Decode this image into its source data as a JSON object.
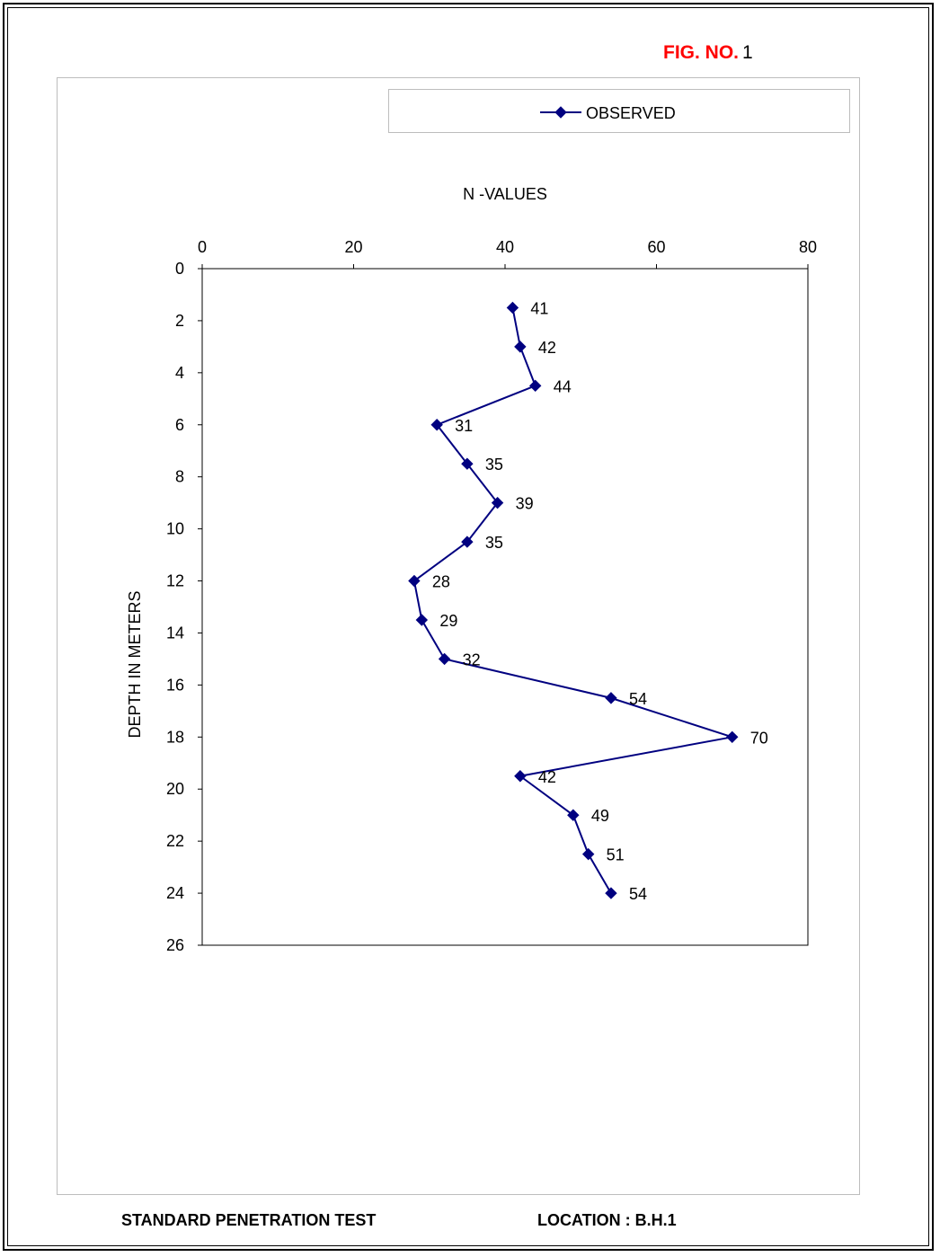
{
  "header": {
    "fig_label": "FIG. NO.",
    "fig_number": "1"
  },
  "footer": {
    "title": "STANDARD PENETRATION TEST",
    "location": "LOCATION : B.H.1"
  },
  "colors": {
    "series": "#000080",
    "fig_label": "#ff0000"
  },
  "chart_data": {
    "type": "line",
    "title": "",
    "xlabel": "N -VALUES",
    "ylabel": "DEPTH IN METERS",
    "x_axis_position": "top",
    "y_axis_inverted": true,
    "xlim": [
      0,
      80
    ],
    "ylim": [
      0,
      26
    ],
    "x_ticks": [
      0,
      20,
      40,
      60,
      80
    ],
    "y_ticks": [
      0,
      2,
      4,
      6,
      8,
      10,
      12,
      14,
      16,
      18,
      20,
      22,
      24,
      26
    ],
    "grid": false,
    "legend_position": "top",
    "series": [
      {
        "name": "OBSERVED",
        "marker": "diamond",
        "points": [
          {
            "n": 41,
            "depth": 1.5
          },
          {
            "n": 42,
            "depth": 3.0
          },
          {
            "n": 44,
            "depth": 4.5
          },
          {
            "n": 31,
            "depth": 6.0
          },
          {
            "n": 35,
            "depth": 7.5
          },
          {
            "n": 39,
            "depth": 9.0
          },
          {
            "n": 35,
            "depth": 10.5
          },
          {
            "n": 28,
            "depth": 12.0
          },
          {
            "n": 29,
            "depth": 13.5
          },
          {
            "n": 32,
            "depth": 15.0
          },
          {
            "n": 54,
            "depth": 16.5
          },
          {
            "n": 70,
            "depth": 18.0
          },
          {
            "n": 42,
            "depth": 19.5
          },
          {
            "n": 49,
            "depth": 21.0
          },
          {
            "n": 51,
            "depth": 22.5
          },
          {
            "n": 54,
            "depth": 24.0
          }
        ]
      }
    ]
  }
}
